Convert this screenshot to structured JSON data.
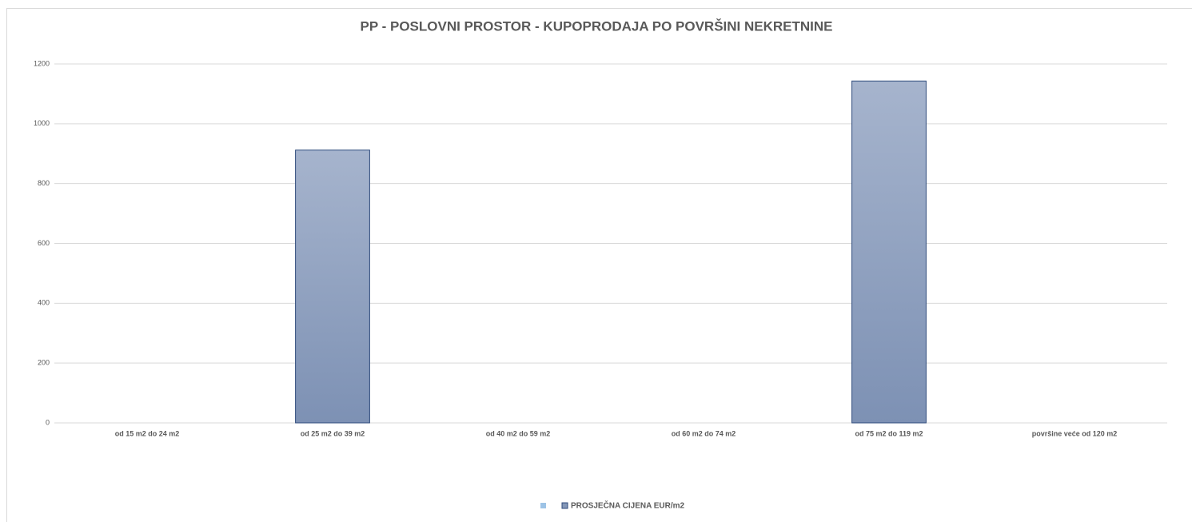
{
  "chart_data": {
    "type": "bar",
    "title": "PP - POSLOVNI PROSTOR - KUPOPRODAJA PO POVRŠINI NEKRETNINE",
    "categories": [
      "od 15 m2 do 24 m2",
      "od 25 m2 do 39 m2",
      "od 40 m2 do 59 m2",
      "od 60 m2 do 74 m2",
      "od 75 m2 do 119 m2",
      "površine veće od 120 m2"
    ],
    "series": [
      {
        "color": "#9dc3e6",
        "values": [
          null,
          null,
          null,
          null,
          null,
          null
        ]
      },
      {
        "name": "PROSJEČNA CIJENA EUR/m2",
        "color": "#8497b8",
        "values": [
          null,
          912,
          null,
          null,
          1143,
          null
        ]
      }
    ],
    "ylim": [
      0,
      1200
    ],
    "yticks": [
      0,
      200,
      400,
      600,
      800,
      1000,
      1200
    ],
    "grid": true
  }
}
